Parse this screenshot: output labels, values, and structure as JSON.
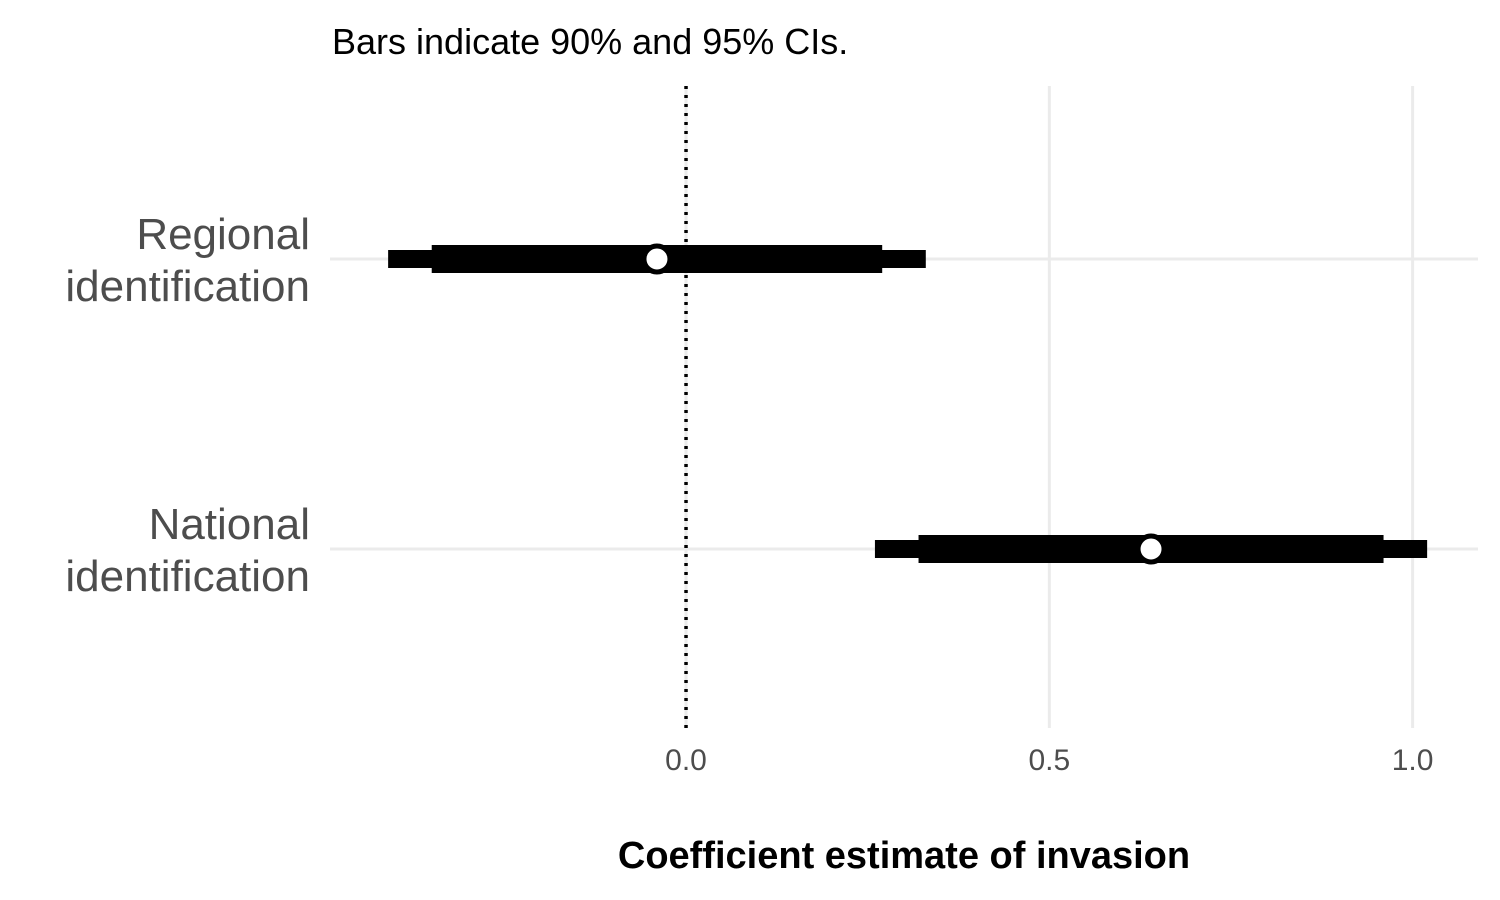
{
  "chart_data": {
    "type": "coefficient-plot",
    "subtitle": "Bars indicate 90% and 95% CIs.",
    "xlabel": "Coefficient estimate of invasion",
    "ylabel": "",
    "xlim": [
      -0.49,
      1.09
    ],
    "xticks": [
      0.0,
      0.5,
      1.0
    ],
    "xtick_labels": [
      "0.0",
      "0.5",
      "1.0"
    ],
    "reference_line": {
      "x": 0.0,
      "style": "dotted"
    },
    "grid": true,
    "series": [
      {
        "label_lines": [
          "Regional",
          "identification"
        ],
        "estimate": -0.04,
        "ci90": [
          -0.35,
          0.27
        ],
        "ci95": [
          -0.41,
          0.33
        ]
      },
      {
        "label_lines": [
          "National",
          "identification"
        ],
        "estimate": 0.64,
        "ci90": [
          0.32,
          0.96
        ],
        "ci95": [
          0.26,
          1.02
        ]
      }
    ],
    "colors": {
      "bar": "#000000",
      "point_fill": "#ffffff",
      "grid": "#ebebeb",
      "label": "#4d4d4d"
    }
  }
}
